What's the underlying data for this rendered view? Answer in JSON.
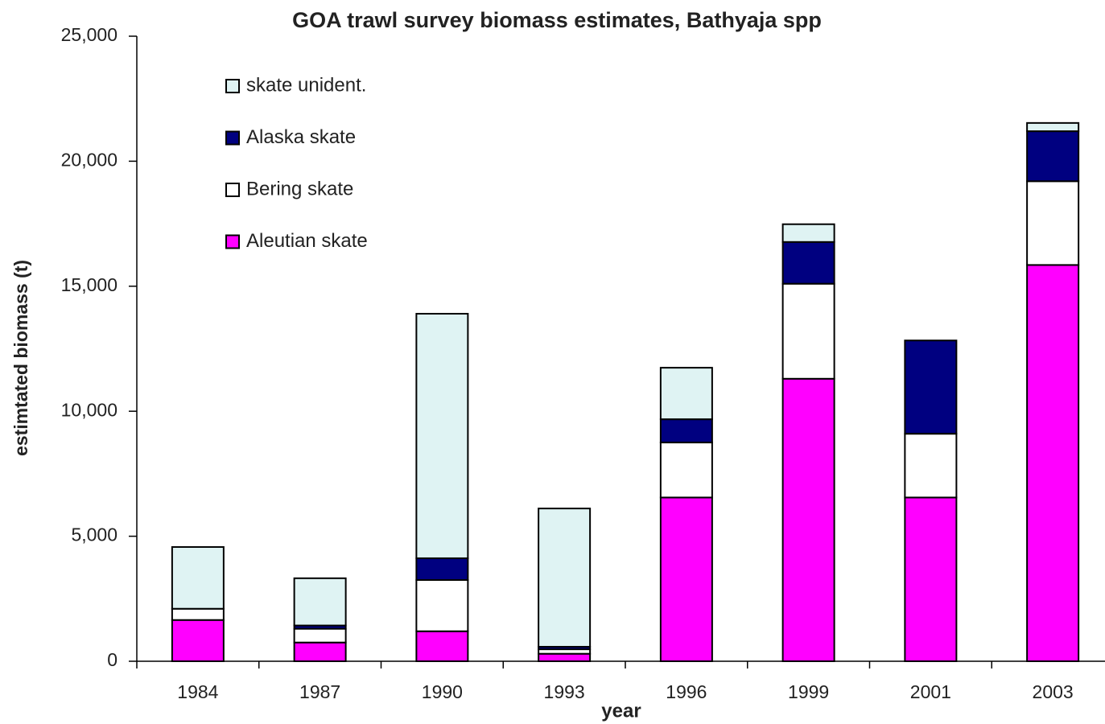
{
  "chart_data": {
    "type": "stacked_bar",
    "title": "GOA trawl survey biomass estimates, Bathyaja spp",
    "x_label": "year",
    "y_label": "estimtated biomass (t)",
    "categories": [
      "1984",
      "1987",
      "1990",
      "1993",
      "1996",
      "1999",
      "2001",
      "2003"
    ],
    "series": [
      {
        "name": "Aleutian skate",
        "color": "#ff00ff",
        "values": [
          1650,
          750,
          1200,
          300,
          6550,
          11300,
          6550,
          15850
        ]
      },
      {
        "name": "Bering skate",
        "color": "#ffffff",
        "values": [
          450,
          550,
          2050,
          180,
          2200,
          3800,
          2550,
          3350
        ]
      },
      {
        "name": "Alaska skate",
        "color": "#000080",
        "values": [
          0,
          130,
          870,
          100,
          930,
          1670,
          3730,
          2000
        ]
      },
      {
        "name": "skate unident.",
        "color": "#dff3f3",
        "values": [
          2470,
          1890,
          9780,
          5530,
          2060,
          710,
          0,
          330
        ]
      }
    ],
    "ylim": [
      0,
      25000
    ],
    "yticks": [
      0,
      {
        "value": 5000,
        "label": "5,000"
      },
      {
        "value": 10000,
        "label": "10,000"
      },
      {
        "value": 15000,
        "label": "15,000"
      },
      {
        "value": 20000,
        "label": "20,000"
      },
      {
        "value": 25000,
        "label": "25,000"
      }
    ],
    "legend": "upper left"
  }
}
